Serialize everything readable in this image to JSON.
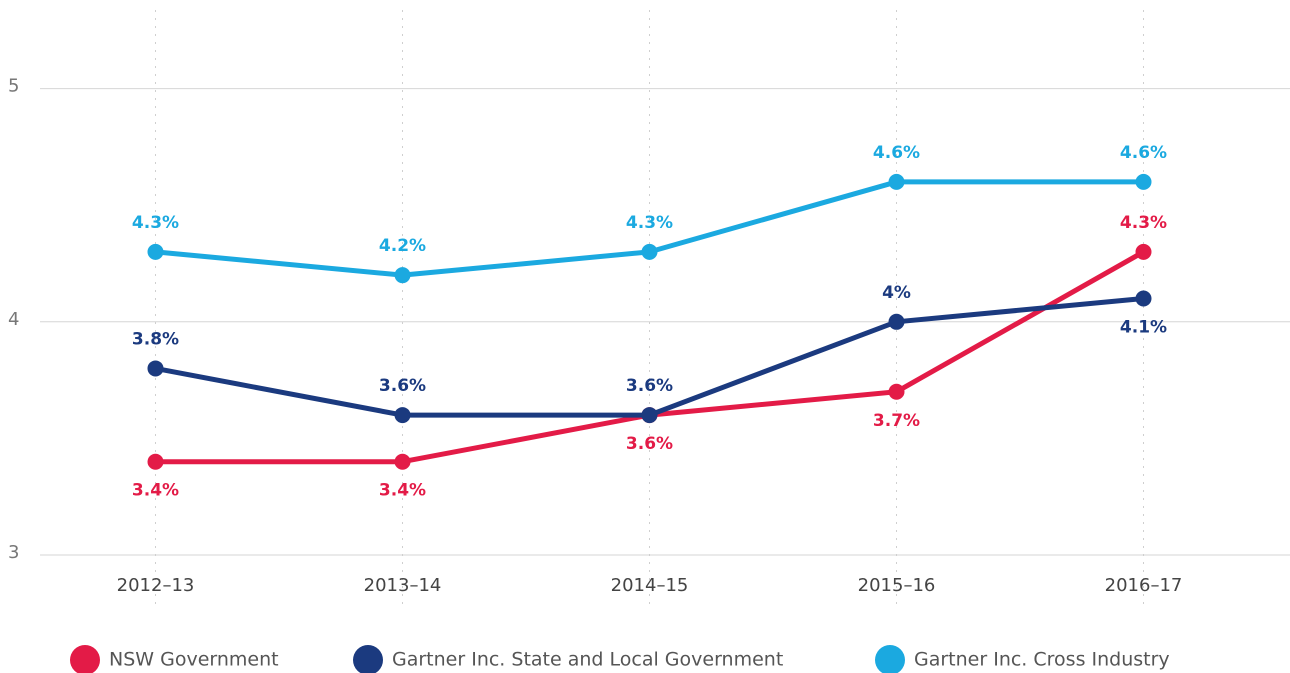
{
  "chart_data": {
    "type": "line",
    "categories": [
      "2012–13",
      "2013–14",
      "2014–15",
      "2015–16",
      "2016–17"
    ],
    "series": [
      {
        "name": "NSW Government",
        "color": "#e31b47",
        "values": [
          3.4,
          3.4,
          3.6,
          3.7,
          4.3
        ],
        "value_labels": [
          "3.4%",
          "3.4%",
          "3.6%",
          "3.7%",
          "4.3%"
        ]
      },
      {
        "name": "Gartner Inc. State and Local Government",
        "color": "#1b3a7f",
        "values": [
          3.8,
          3.6,
          3.6,
          4.0,
          4.1
        ],
        "value_labels": [
          "3.8%",
          "3.6%",
          "3.6%",
          "4%",
          "4.1%"
        ]
      },
      {
        "name": "Gartner Inc. Cross Industry",
        "color": "#1ba9e0",
        "values": [
          4.3,
          4.2,
          4.3,
          4.6,
          4.6
        ],
        "value_labels": [
          "4.3%",
          "4.2%",
          "4.3%",
          "4.6%",
          "4.6%"
        ]
      }
    ],
    "ylim": [
      3,
      5.38
    ],
    "yticks": [
      3,
      4,
      5
    ],
    "grid": true,
    "legend": "bottom"
  }
}
